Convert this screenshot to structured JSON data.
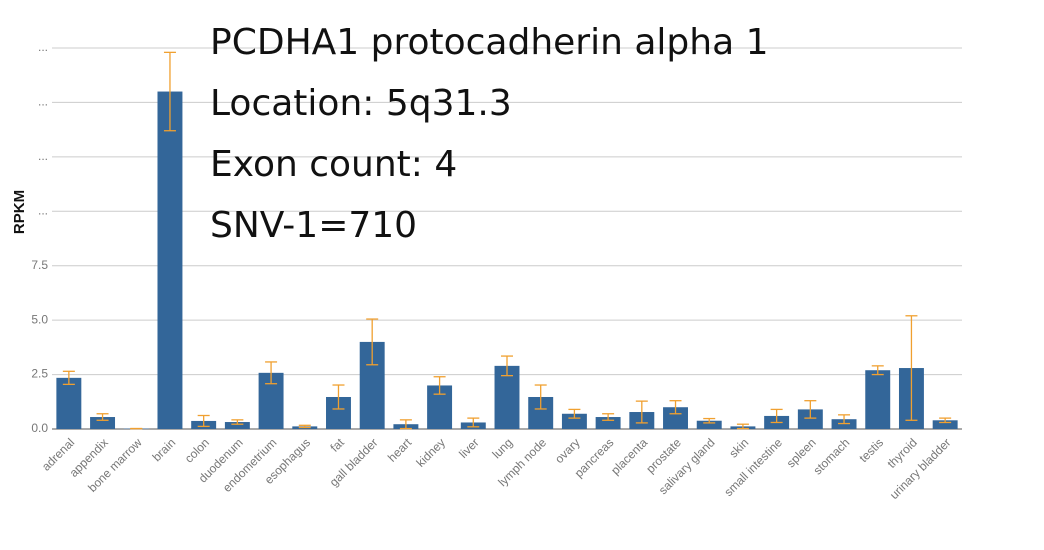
{
  "chart_data": {
    "type": "bar",
    "annotations": [
      "PCDHA1 protocadherin alpha 1",
      "Location: 5q31.3",
      "Exon count: 4",
      "SNV-1=710"
    ],
    "y_label": "RPKM",
    "categories": [
      "adrenal",
      "appendix",
      "bone marrow",
      "brain",
      "colon",
      "duodenum",
      "endometrium",
      "esophagus",
      "fat",
      "gall bladder",
      "heart",
      "kidney",
      "liver",
      "lung",
      "lymph node",
      "ovary",
      "pancreas",
      "placenta",
      "prostate",
      "salivary gland",
      "skin",
      "small intestine",
      "spleen",
      "stomach",
      "testis",
      "thyroid",
      "urinary bladder"
    ],
    "values": [
      2.35,
      0.55,
      0.02,
      15.5,
      0.37,
      0.32,
      2.58,
      0.12,
      1.47,
      4.0,
      0.22,
      2.0,
      0.3,
      2.9,
      1.47,
      0.7,
      0.55,
      0.78,
      1.0,
      0.38,
      0.12,
      0.6,
      0.9,
      0.45,
      2.7,
      2.8,
      0.4
    ],
    "errors": [
      0.3,
      0.15,
      0,
      1.8,
      0.25,
      0.1,
      0.5,
      0.05,
      0.55,
      1.05,
      0.2,
      0.4,
      0.2,
      0.45,
      0.55,
      0.2,
      0.15,
      0.5,
      0.3,
      0.1,
      0.1,
      0.3,
      0.4,
      0.2,
      0.2,
      2.4,
      0.1
    ],
    "color": "#336699",
    "error_color": "#f0a030",
    "ylim": [
      0,
      17.5
    ],
    "yticks": [
      {
        "value": 0,
        "label": "0.0"
      },
      2.5,
      {
        "value": 5,
        "label": "5.0"
      },
      7.5,
      {
        "value": 10,
        "label": "..."
      },
      {
        "value": 12.5,
        "label": "..."
      },
      {
        "value": 15,
        "label": "..."
      },
      {
        "value": 17.5,
        "label": "..."
      }
    ],
    "grid": true
  }
}
